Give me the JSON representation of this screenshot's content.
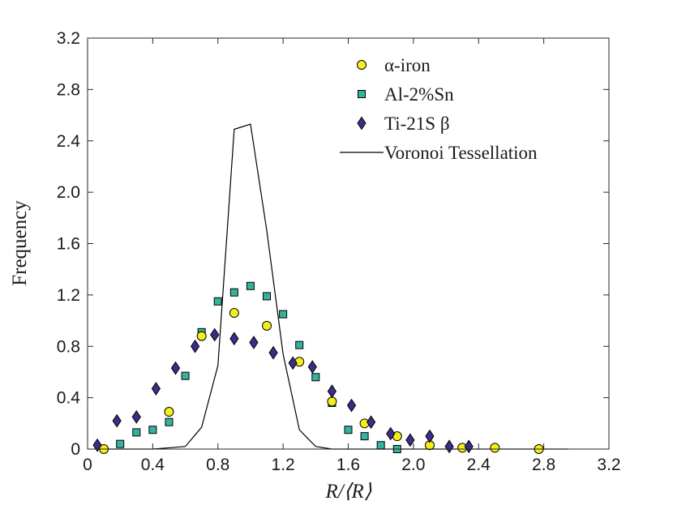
{
  "chart_data": {
    "type": "scatter",
    "title": "",
    "xlabel": "R/⟨R⟩",
    "ylabel": "Frequency",
    "xlim": [
      0,
      3.2
    ],
    "ylim": [
      0,
      3.2
    ],
    "xticks": [
      "0",
      "0.4",
      "0.8",
      "1.2",
      "1.6",
      "2.0",
      "2.4",
      "2.8",
      "3.2"
    ],
    "yticks": [
      "0",
      "0.4",
      "0.8",
      "1.2",
      "1.6",
      "2.0",
      "2.4",
      "2.8",
      "3.2"
    ],
    "grid": false,
    "legend_position": "top-right",
    "series": [
      {
        "name": "α-iron",
        "marker": "circle",
        "color": "#f5ef19",
        "x": [
          0.1,
          0.5,
          0.7,
          0.9,
          1.1,
          1.3,
          1.5,
          1.7,
          1.9,
          2.1,
          2.3,
          2.5,
          2.77
        ],
        "y": [
          0.0,
          0.29,
          0.88,
          1.06,
          0.96,
          0.68,
          0.37,
          0.2,
          0.1,
          0.03,
          0.01,
          0.01,
          0.0
        ]
      },
      {
        "name": "Al-2%Sn",
        "marker": "square",
        "color": "#35b29b",
        "x": [
          0.2,
          0.3,
          0.4,
          0.5,
          0.6,
          0.7,
          0.8,
          0.9,
          1.0,
          1.1,
          1.2,
          1.3,
          1.4,
          1.5,
          1.6,
          1.7,
          1.8,
          1.9
        ],
        "y": [
          0.04,
          0.13,
          0.15,
          0.21,
          0.57,
          0.91,
          1.15,
          1.22,
          1.27,
          1.19,
          1.05,
          0.81,
          0.56,
          0.36,
          0.15,
          0.1,
          0.03,
          0.0
        ]
      },
      {
        "name": "Ti-21S β",
        "marker": "diamond",
        "color": "#3b2d88",
        "x": [
          0.06,
          0.18,
          0.3,
          0.42,
          0.54,
          0.66,
          0.78,
          0.9,
          1.02,
          1.14,
          1.26,
          1.38,
          1.5,
          1.62,
          1.74,
          1.86,
          1.98,
          2.1,
          2.22,
          2.34
        ],
        "y": [
          0.03,
          0.22,
          0.25,
          0.47,
          0.63,
          0.8,
          0.89,
          0.86,
          0.83,
          0.75,
          0.67,
          0.64,
          0.45,
          0.34,
          0.21,
          0.12,
          0.07,
          0.1,
          0.02,
          0.02
        ]
      },
      {
        "name": "Voronoi Tessellation",
        "marker": "line",
        "color": "#000000",
        "x": [
          0.1,
          0.2,
          0.3,
          0.4,
          0.5,
          0.6,
          0.7,
          0.8,
          0.9,
          1.0,
          1.1,
          1.2,
          1.3,
          1.4,
          1.5,
          1.6,
          1.7,
          1.8,
          1.9,
          2.0,
          2.2,
          2.4,
          2.6,
          2.8,
          2.95
        ],
        "y": [
          0,
          0,
          0,
          0,
          0.01,
          0.02,
          0.17,
          0.65,
          2.49,
          2.53,
          1.7,
          0.74,
          0.15,
          0.02,
          0.0,
          0,
          0,
          0,
          0,
          0,
          0,
          0,
          0,
          0,
          0
        ]
      }
    ]
  }
}
